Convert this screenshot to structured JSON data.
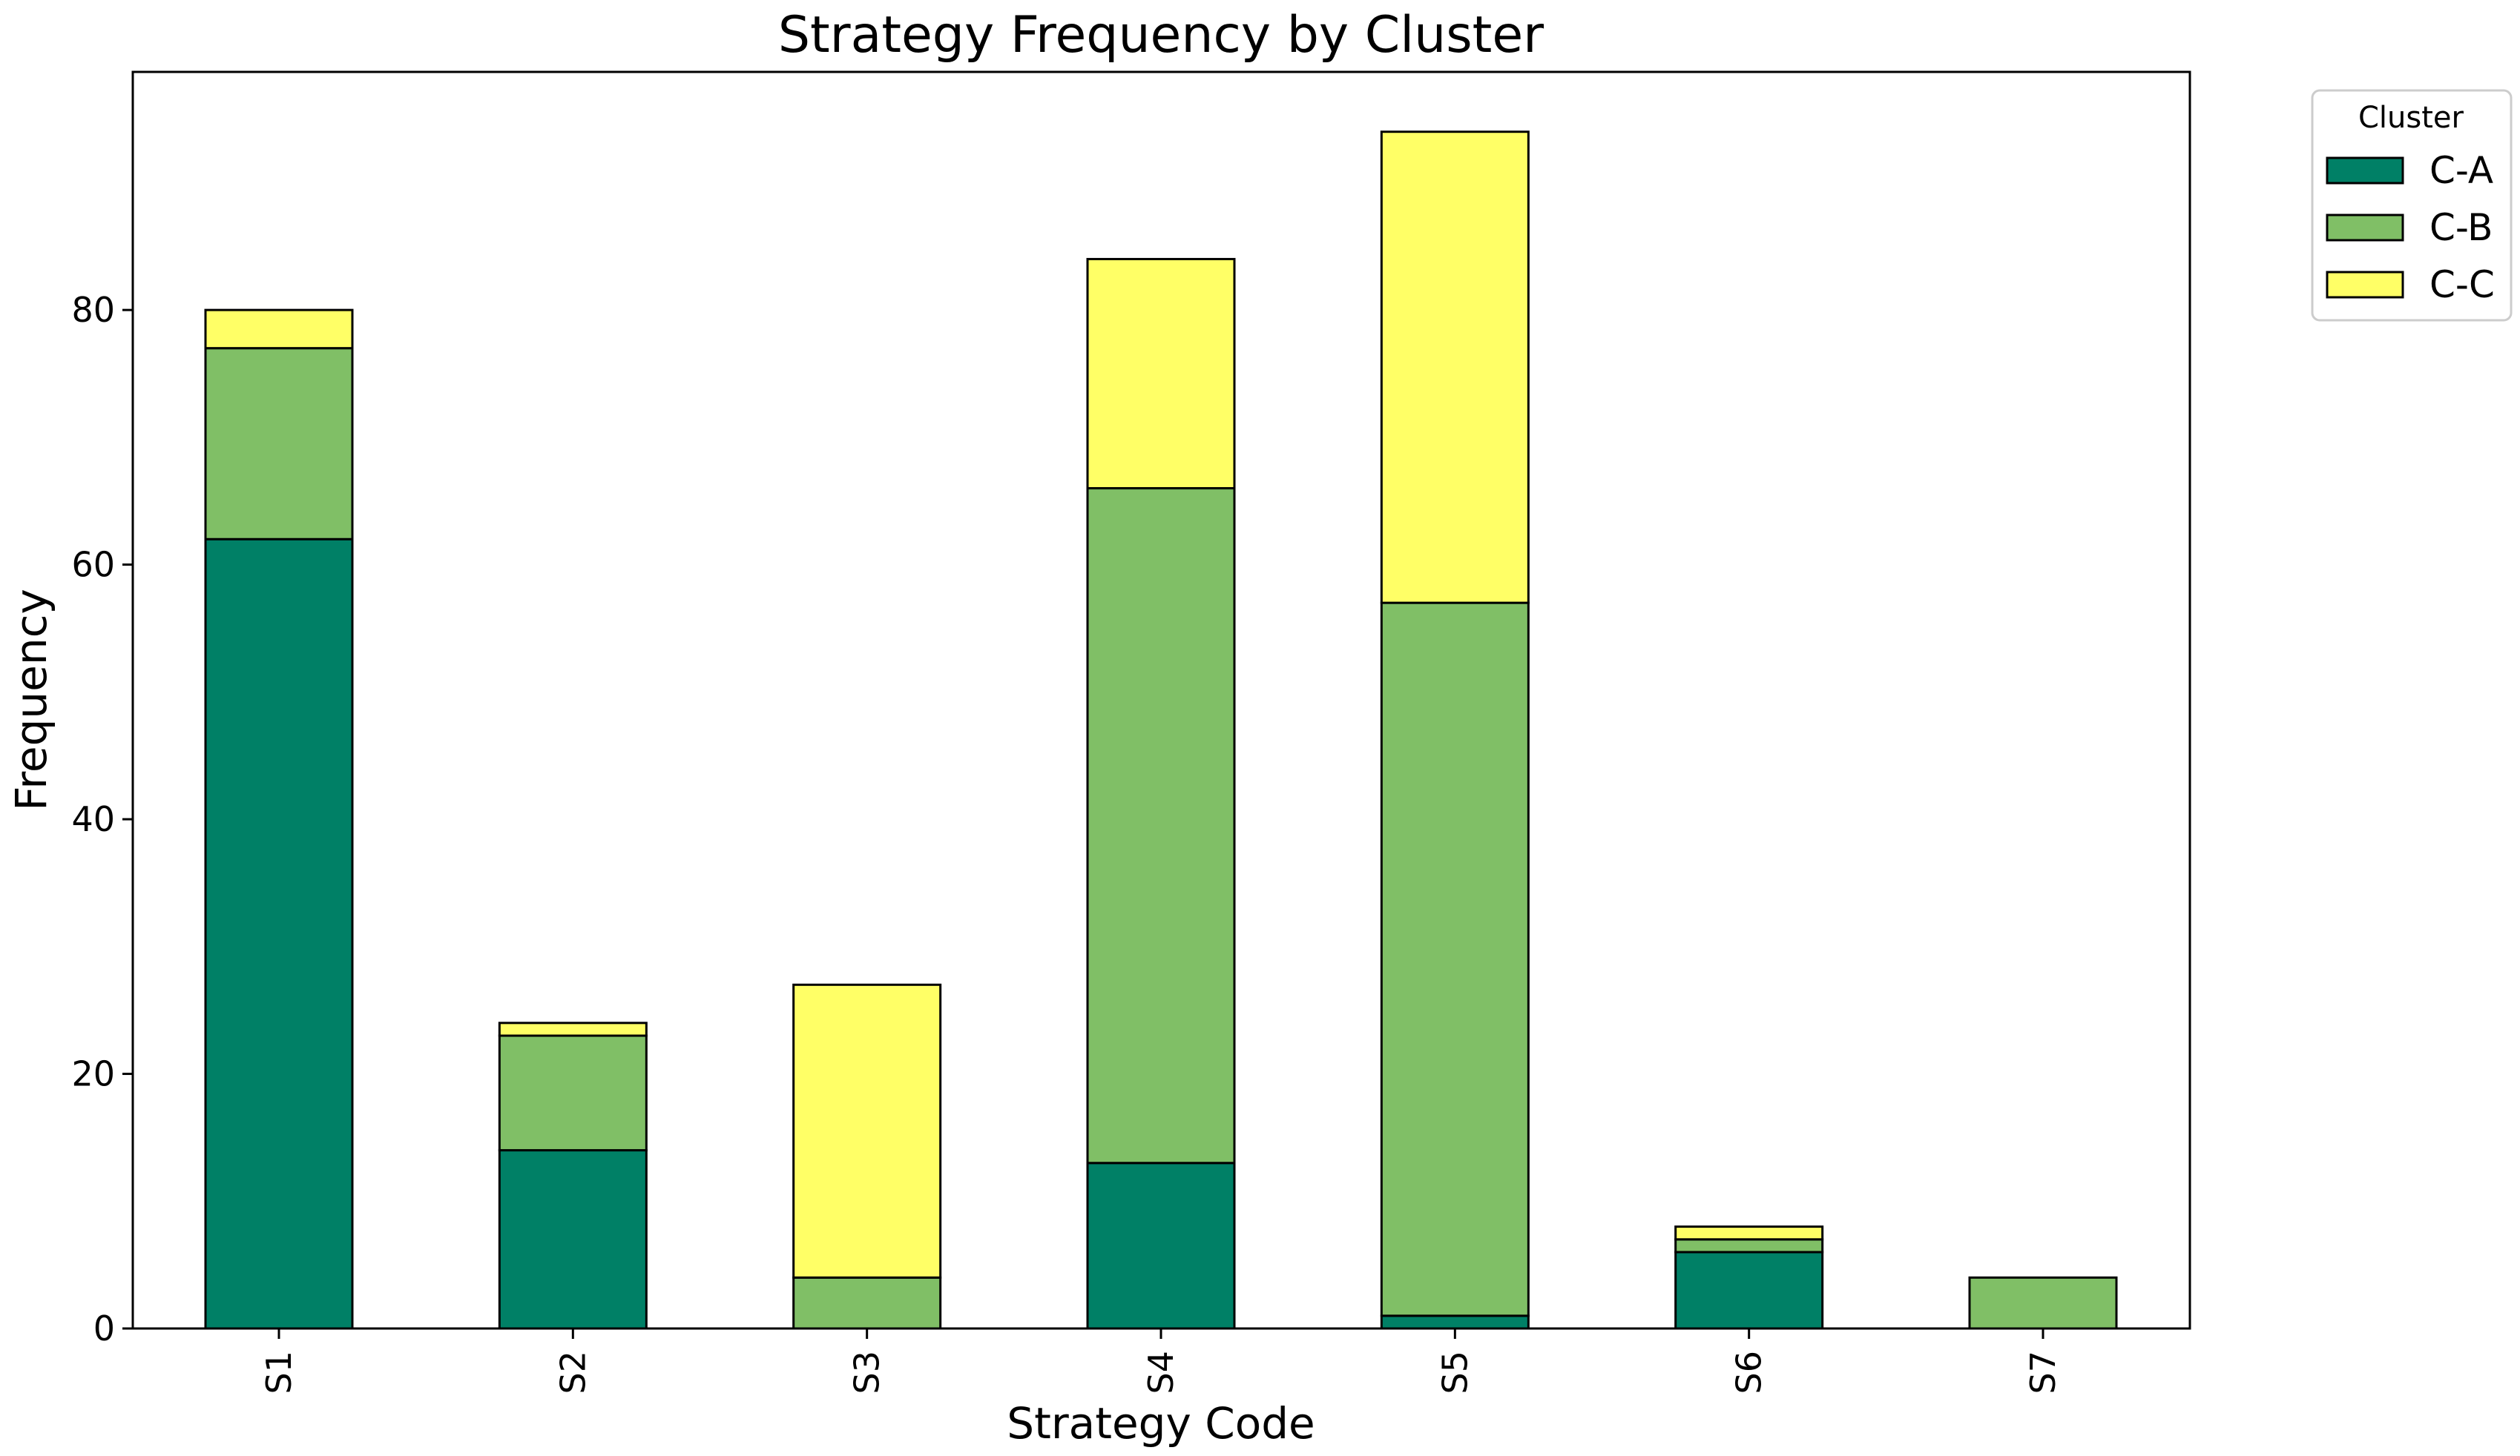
{
  "chart_data": {
    "type": "bar",
    "stacked": true,
    "title": "Strategy Frequency by Cluster",
    "xlabel": "Strategy Code",
    "ylabel": "Frequency",
    "categories": [
      "S1",
      "S2",
      "S3",
      "S4",
      "S5",
      "S6",
      "S7"
    ],
    "series": [
      {
        "name": "C-A",
        "color": "#008066",
        "values": [
          62,
          14,
          0,
          13,
          1,
          6,
          0
        ]
      },
      {
        "name": "C-B",
        "color": "#80bf66",
        "values": [
          15,
          9,
          4,
          53,
          56,
          1,
          4
        ]
      },
      {
        "name": "C-C",
        "color": "#ffff66",
        "values": [
          3,
          1,
          23,
          18,
          37,
          1,
          0
        ]
      }
    ],
    "ylim": [
      0,
      98.7
    ],
    "yticks": [
      0,
      20,
      40,
      60,
      80
    ],
    "grid": false,
    "legend": {
      "title": "Cluster",
      "placement": "outside top-right"
    }
  }
}
